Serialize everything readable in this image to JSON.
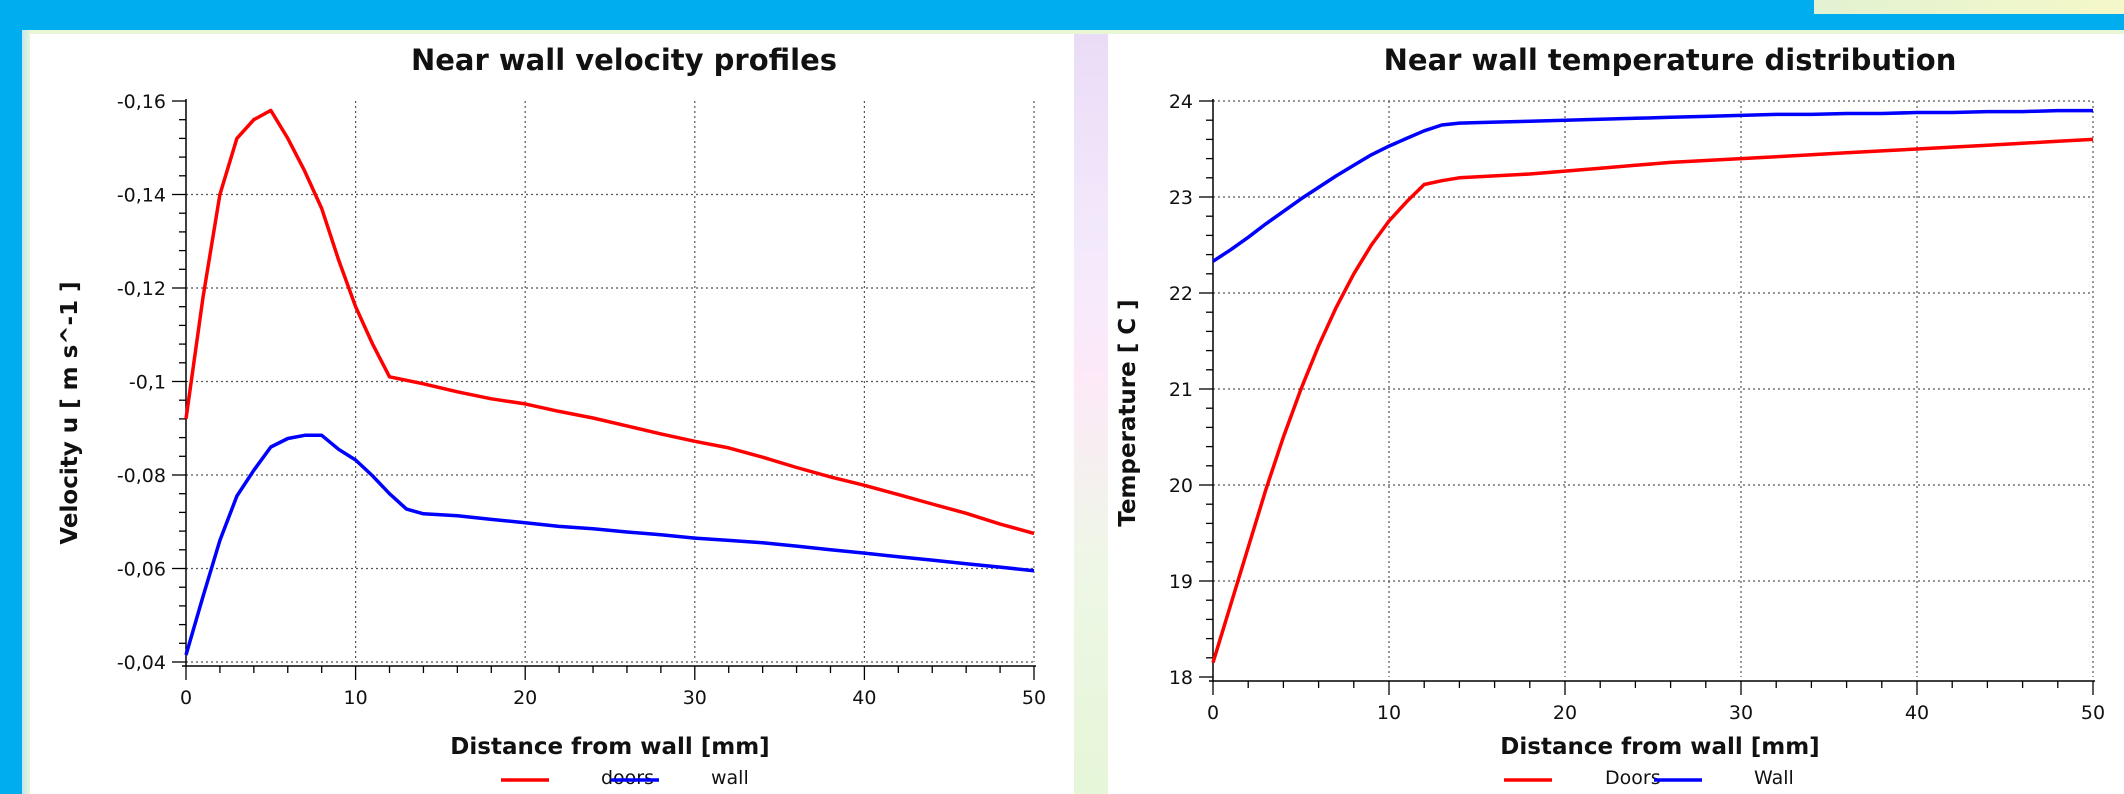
{
  "chart_data": [
    {
      "type": "line",
      "title": "Near wall velocity profiles",
      "xlabel": "Distance from wall [mm]",
      "ylabel": "Velocity u [ m s^-1 ]",
      "xlim": [
        0,
        50
      ],
      "ylim": [
        -0.04,
        -0.16
      ],
      "y_inverted": true,
      "xticks": [
        0,
        10,
        20,
        30,
        40,
        50
      ],
      "xtick_labels": [
        "0",
        "10",
        "20",
        "30",
        "40",
        "50"
      ],
      "yticks": [
        -0.16,
        -0.14,
        -0.12,
        -0.1,
        -0.08,
        -0.06,
        -0.04
      ],
      "ytick_labels": [
        "-0,16",
        "-0,14",
        "-0,12",
        "-0,1",
        "-0,08",
        "-0,06",
        "-0,04"
      ],
      "grid": true,
      "legend_position": "bottom-center",
      "series": [
        {
          "name": "doors",
          "color": "#ff0000",
          "x": [
            0,
            1,
            2,
            3,
            4,
            5,
            6,
            7,
            8,
            9,
            10,
            11,
            12,
            14,
            16,
            18,
            20,
            22,
            24,
            26,
            28,
            30,
            32,
            34,
            36,
            38,
            40,
            42,
            44,
            46,
            48,
            50
          ],
          "y": [
            -0.092,
            -0.118,
            -0.14,
            -0.152,
            -0.156,
            -0.158,
            -0.152,
            -0.145,
            -0.137,
            -0.126,
            -0.116,
            -0.108,
            -0.101,
            -0.0995,
            -0.0978,
            -0.0963,
            -0.0952,
            -0.0936,
            -0.0922,
            -0.0905,
            -0.0888,
            -0.0872,
            -0.0858,
            -0.0838,
            -0.0816,
            -0.0796,
            -0.0778,
            -0.0758,
            -0.0738,
            -0.0718,
            -0.0695,
            -0.0675
          ]
        },
        {
          "name": "wall",
          "color": "#0000ff",
          "x": [
            0,
            1,
            2,
            3,
            4,
            5,
            6,
            7,
            8,
            9,
            10,
            11,
            12,
            13,
            14,
            16,
            18,
            20,
            22,
            24,
            26,
            28,
            30,
            32,
            34,
            36,
            38,
            40,
            42,
            44,
            46,
            48,
            50
          ],
          "y": [
            -0.0415,
            -0.054,
            -0.066,
            -0.0755,
            -0.081,
            -0.086,
            -0.0878,
            -0.0885,
            -0.0885,
            -0.0855,
            -0.0832,
            -0.0798,
            -0.076,
            -0.0727,
            -0.0717,
            -0.0713,
            -0.0705,
            -0.0698,
            -0.069,
            -0.0685,
            -0.0678,
            -0.0672,
            -0.0665,
            -0.066,
            -0.0655,
            -0.0648,
            -0.064,
            -0.0633,
            -0.0625,
            -0.0618,
            -0.061,
            -0.0603,
            -0.0595
          ]
        }
      ]
    },
    {
      "type": "line",
      "title": "Near wall temperature distribution",
      "xlabel": "Distance from wall [mm]",
      "ylabel": "Temperature [ C ]",
      "xlim": [
        0,
        50
      ],
      "ylim": [
        18,
        24
      ],
      "xticks": [
        0,
        10,
        20,
        30,
        40,
        50
      ],
      "xtick_labels": [
        "0",
        "10",
        "20",
        "30",
        "40",
        "50"
      ],
      "yticks": [
        18,
        19,
        20,
        21,
        22,
        23,
        24
      ],
      "ytick_labels": [
        "18",
        "19",
        "20",
        "21",
        "22",
        "23",
        "24"
      ],
      "grid": true,
      "legend_position": "bottom-center",
      "series": [
        {
          "name": "Doors",
          "color": "#ff0000",
          "x": [
            0,
            1,
            2,
            3,
            4,
            5,
            6,
            7,
            8,
            9,
            10,
            11,
            12,
            13,
            14,
            16,
            18,
            20,
            22,
            24,
            26,
            28,
            30,
            32,
            34,
            36,
            38,
            40,
            42,
            44,
            46,
            48,
            50
          ],
          "y": [
            18.15,
            18.75,
            19.35,
            19.95,
            20.5,
            21.0,
            21.45,
            21.85,
            22.2,
            22.5,
            22.75,
            22.95,
            23.13,
            23.17,
            23.2,
            23.22,
            23.24,
            23.27,
            23.3,
            23.33,
            23.36,
            23.38,
            23.4,
            23.42,
            23.44,
            23.46,
            23.48,
            23.5,
            23.52,
            23.54,
            23.56,
            23.58,
            23.6
          ]
        },
        {
          "name": "Wall",
          "color": "#0000ff",
          "x": [
            0,
            1,
            2,
            3,
            4,
            5,
            6,
            7,
            8,
            9,
            10,
            11,
            12,
            13,
            14,
            16,
            18,
            20,
            22,
            24,
            26,
            28,
            30,
            32,
            34,
            36,
            38,
            40,
            42,
            44,
            46,
            48,
            50
          ],
          "y": [
            22.33,
            22.45,
            22.58,
            22.72,
            22.85,
            22.98,
            23.1,
            23.22,
            23.33,
            23.44,
            23.53,
            23.61,
            23.69,
            23.75,
            23.77,
            23.78,
            23.79,
            23.8,
            23.81,
            23.82,
            23.83,
            23.84,
            23.85,
            23.86,
            23.86,
            23.87,
            23.87,
            23.88,
            23.88,
            23.89,
            23.89,
            23.9,
            23.9
          ]
        }
      ]
    }
  ]
}
